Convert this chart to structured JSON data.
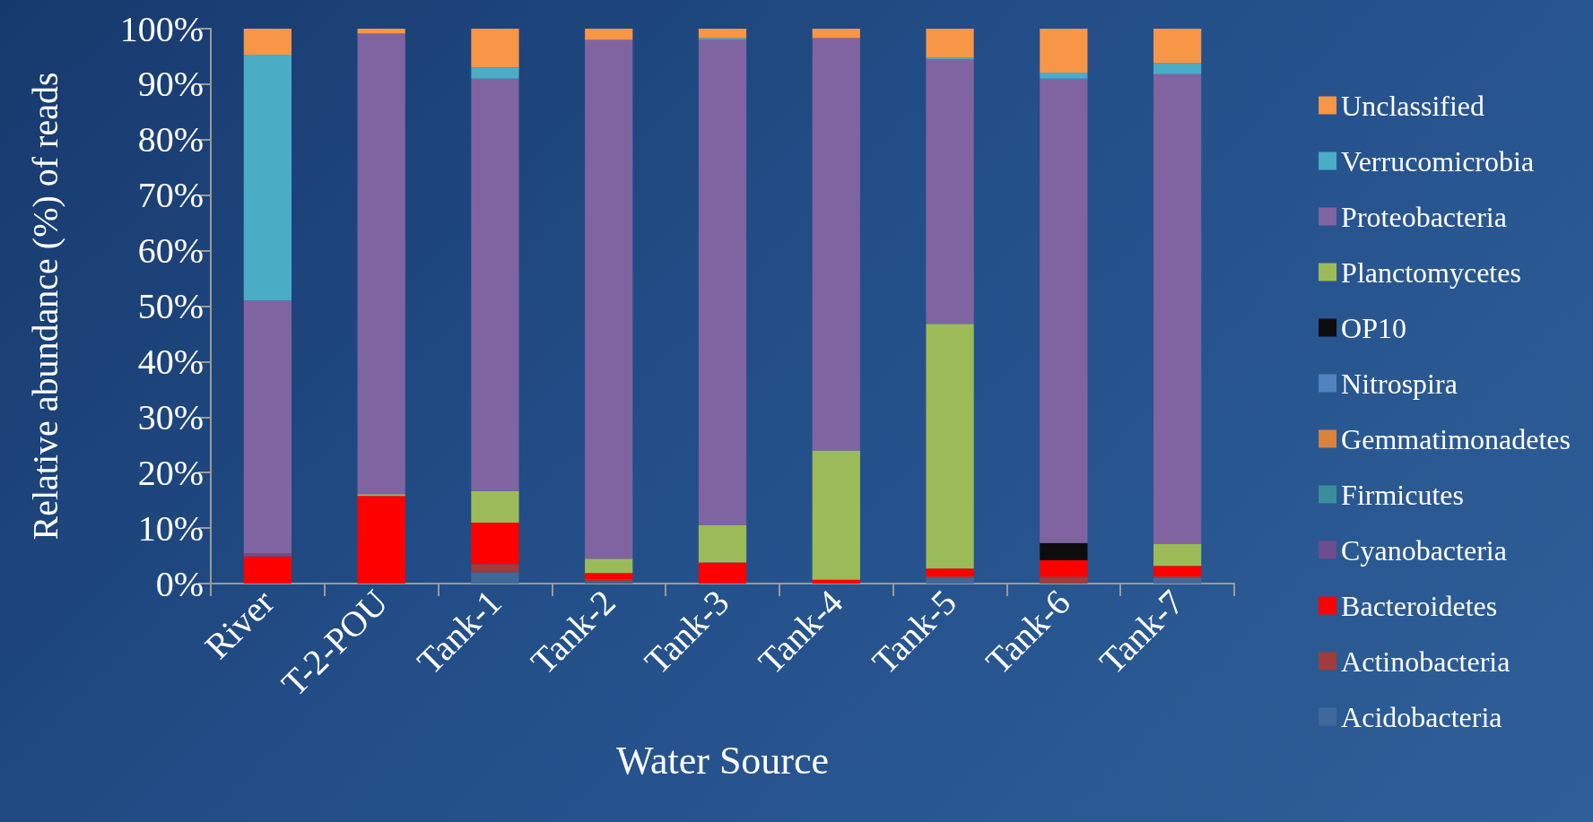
{
  "chart_data": {
    "type": "bar",
    "stacked": true,
    "xlabel": "Water Source",
    "ylabel": "Relative abundance (%) of reads",
    "categories": [
      "River",
      "T-2-POU",
      "Tank-1",
      "Tank-2",
      "Tank-3",
      "Tank-4",
      "Tank-5",
      "Tank-6",
      "Tank-7"
    ],
    "ylim": [
      0,
      100
    ],
    "yticks": [
      {
        "value": 0,
        "label": "0%"
      },
      {
        "value": 10,
        "label": "10%"
      },
      {
        "value": 20,
        "label": "20%"
      },
      {
        "value": 30,
        "label": "30%"
      },
      {
        "value": 40,
        "label": "40%"
      },
      {
        "value": 50,
        "label": "50%"
      },
      {
        "value": 60,
        "label": "60%"
      },
      {
        "value": 70,
        "label": "70%"
      },
      {
        "value": 80,
        "label": "80%"
      },
      {
        "value": 90,
        "label": "90%"
      },
      {
        "value": 100,
        "label": "100%"
      }
    ],
    "grid": false,
    "legend": "right",
    "series": [
      {
        "name": "Acidobacteria",
        "color": "#40699b",
        "values": [
          0,
          0,
          2.0,
          0.3,
          0,
          0,
          1.0,
          0,
          1.0
        ]
      },
      {
        "name": "Actinobacteria",
        "color": "#9e3d3b",
        "values": [
          0,
          0,
          1.5,
          0.5,
          0,
          0,
          0.3,
          1.2,
          0.3
        ]
      },
      {
        "name": "Bacteroidetes",
        "color": "#ff0000",
        "values": [
          4.9,
          15.8,
          7.5,
          1.1,
          3.8,
          0.7,
          1.4,
          3.0,
          1.9
        ]
      },
      {
        "name": "Cyanobacteria",
        "color": "#6e4d8e",
        "values": [
          0.6,
          0,
          0,
          0,
          0,
          0,
          0,
          0,
          0
        ]
      },
      {
        "name": "Firmicutes",
        "color": "#3a8f9b",
        "values": [
          0,
          0,
          0,
          0,
          0,
          0,
          0,
          0,
          0
        ]
      },
      {
        "name": "Gemmatimonadetes",
        "color": "#d9833d",
        "values": [
          0,
          0,
          0,
          0,
          0,
          0,
          0,
          0,
          0
        ]
      },
      {
        "name": "Nitrospira",
        "color": "#5183c0",
        "values": [
          0,
          0,
          0,
          0,
          0,
          0,
          0,
          0,
          0
        ]
      },
      {
        "name": "OP10",
        "color": "#0d0d0d",
        "values": [
          0,
          0,
          0,
          0,
          0,
          0,
          0,
          3.1,
          0
        ]
      },
      {
        "name": "Planctomycetes",
        "color": "#9bbb59",
        "values": [
          0,
          0.3,
          5.7,
          2.6,
          6.7,
          23.3,
          44.1,
          0,
          3.9
        ]
      },
      {
        "name": "Proteobacteria",
        "color": "#8064a2",
        "values": [
          45.5,
          83.0,
          74.3,
          93.5,
          87.5,
          74.3,
          47.7,
          83.7,
          84.7
        ]
      },
      {
        "name": "Verrucomicrobia",
        "color": "#4bacc6",
        "values": [
          44.3,
          0,
          2.0,
          0,
          0.3,
          0,
          0.3,
          1.1,
          2.0
        ]
      },
      {
        "name": "Unclassified",
        "color": "#f79646",
        "values": [
          4.7,
          0.9,
          7.0,
          2.0,
          1.7,
          1.7,
          5.2,
          7.9,
          6.2
        ]
      }
    ]
  }
}
